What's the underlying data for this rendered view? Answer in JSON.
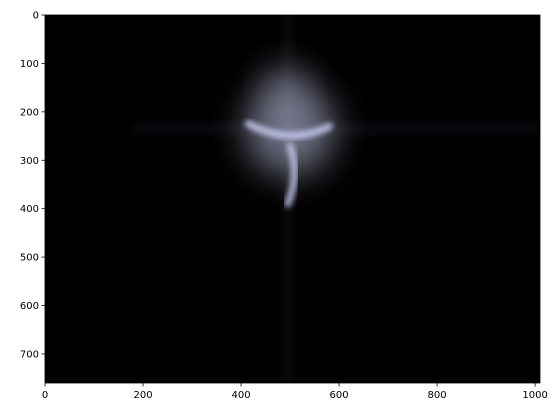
{
  "chart_data": {
    "type": "heatmap",
    "title": "",
    "xlabel": "",
    "ylabel": "",
    "xlim": [
      0,
      1010
    ],
    "ylim": [
      760,
      0
    ],
    "xticks": [
      0,
      200,
      400,
      600,
      800,
      1000
    ],
    "yticks": [
      0,
      100,
      200,
      300,
      400,
      500,
      600,
      700
    ],
    "grid": false,
    "background_color": "#000000",
    "glow_color": "#c8cdf0",
    "features": [
      {
        "kind": "core-glow",
        "cx": 500,
        "cy": 235,
        "rx": 150,
        "ry": 160,
        "intensity": 0.55
      },
      {
        "kind": "bright-arm",
        "points": [
          [
            415,
            225
          ],
          [
            500,
            270
          ],
          [
            580,
            230
          ]
        ],
        "intensity": 0.95
      },
      {
        "kind": "bright-stem",
        "points": [
          [
            500,
            270
          ],
          [
            520,
            330
          ],
          [
            495,
            390
          ]
        ],
        "intensity": 0.85
      },
      {
        "kind": "top-glow",
        "cx": 490,
        "cy": 150,
        "rx": 70,
        "ry": 80,
        "intensity": 0.35
      },
      {
        "kind": "horizontal-streak",
        "y": 235,
        "x_from": 180,
        "x_to": 1010,
        "intensity": 0.12
      },
      {
        "kind": "vertical-streak",
        "x": 495,
        "y_from": 0,
        "y_to": 760,
        "intensity": 0.1
      }
    ]
  }
}
